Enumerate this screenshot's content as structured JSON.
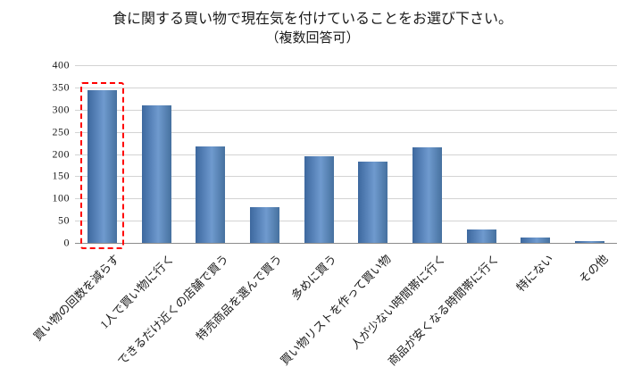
{
  "title": {
    "line1": "食に関する買い物で現在気を付けていることをお選び下さい。",
    "line2": "（複数回答可）"
  },
  "chart_data": {
    "type": "bar",
    "title": "食に関する買い物で現在気を付けていることをお選び下さい。（複数回答可）",
    "categories": [
      "買い物の回数を減らす",
      "1人で買い物に行く",
      "できるだけ近くの店舗で買う",
      "特売商品を選んで買う",
      "多めに買う",
      "買い物リストを作って買い物",
      "人が少ない時間帯に行く",
      "商品が安くなる時間帯に行く",
      "特にない",
      "その他"
    ],
    "values": [
      343,
      310,
      218,
      80,
      195,
      183,
      215,
      30,
      13,
      5
    ],
    "xlabel": "",
    "ylabel": "",
    "ylim": [
      0,
      400
    ],
    "yticks": [
      0,
      50,
      100,
      150,
      200,
      250,
      300,
      350,
      400
    ],
    "grid": true,
    "legend": "none",
    "bar_color": "#4f81bd",
    "highlight": {
      "index": 0,
      "style": "dashed-box",
      "color": "#ff0000"
    }
  }
}
